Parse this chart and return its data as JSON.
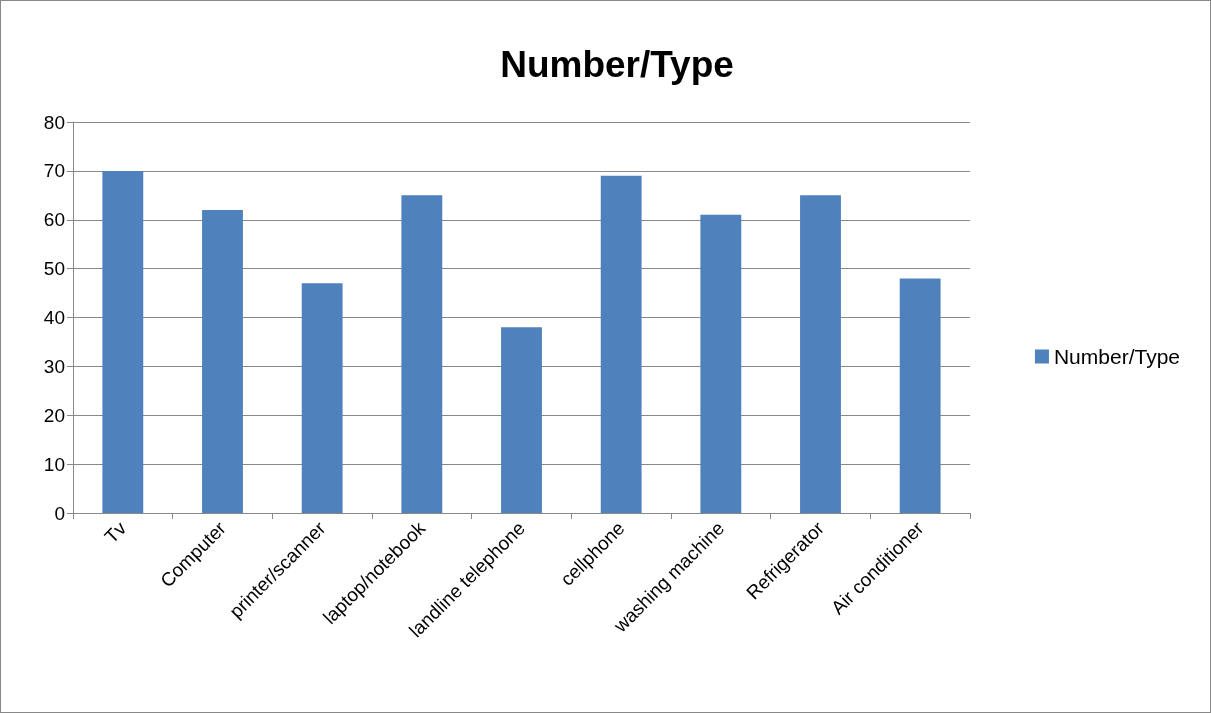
{
  "chart_data": {
    "type": "bar",
    "title": "Number/Type",
    "categories": [
      "Tv",
      "Computer",
      "printer/scanner",
      "laptop/notebook",
      "landline telephone",
      "cellphone",
      "washing machine",
      "Refrigerator",
      "Air conditioner"
    ],
    "series": [
      {
        "name": "Number/Type",
        "color": "#4f81bd",
        "values": [
          70,
          62,
          47,
          65,
          38,
          69,
          61,
          65,
          48
        ]
      }
    ],
    "ylim": [
      0,
      80
    ],
    "yticks": [
      0,
      10,
      20,
      30,
      40,
      50,
      60,
      70,
      80
    ],
    "grid": "y",
    "legend": "right"
  }
}
